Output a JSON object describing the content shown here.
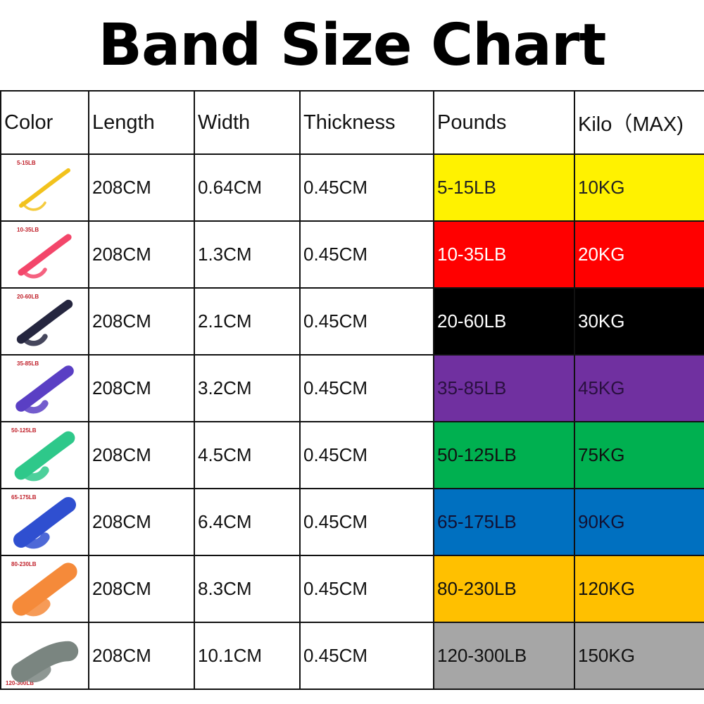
{
  "title": "Band Size Chart",
  "headers": [
    "Color",
    "Length",
    "Width",
    "Thickness",
    "Pounds",
    "Kilo（MAX)"
  ],
  "rows": [
    {
      "label": "5-15LB",
      "length": "208CM",
      "width": "0.64CM",
      "thickness": "0.45CM",
      "pounds": "5-15LB",
      "kilo": "10KG",
      "band_color": "#f2c21c",
      "cell_color": "#fff200",
      "text_color": "#222222"
    },
    {
      "label": "10-35LB",
      "length": "208CM",
      "width": "1.3CM",
      "thickness": "0.45CM",
      "pounds": "10-35LB",
      "kilo": "20KG",
      "band_color": "#f3466a",
      "cell_color": "#ff0000",
      "text_color": "#ffffff"
    },
    {
      "label": "20-60LB",
      "length": "208CM",
      "width": "2.1CM",
      "thickness": "0.45CM",
      "pounds": "20-60LB",
      "kilo": "30KG",
      "band_color": "#25263f",
      "cell_color": "#000000",
      "text_color": "#ffffff"
    },
    {
      "label": "35-85LB",
      "length": "208CM",
      "width": "3.2CM",
      "thickness": "0.45CM",
      "pounds": "35-85LB",
      "kilo": "45KG",
      "band_color": "#5a3fc4",
      "cell_color": "#7030a0",
      "text_color": "#2a1040"
    },
    {
      "label": "50-125LB",
      "length": "208CM",
      "width": "4.5CM",
      "thickness": "0.45CM",
      "pounds": "50-125LB",
      "kilo": "75KG",
      "band_color": "#2ec88a",
      "cell_color": "#00b050",
      "text_color": "#111111"
    },
    {
      "label": "65-175LB",
      "length": "208CM",
      "width": "6.4CM",
      "thickness": "0.45CM",
      "pounds": "65-175LB",
      "kilo": "90KG",
      "band_color": "#2f4fd0",
      "cell_color": "#0070c0",
      "text_color": "#111133"
    },
    {
      "label": "80-230LB",
      "length": "208CM",
      "width": "8.3CM",
      "thickness": "0.45CM",
      "pounds": "80-230LB",
      "kilo": "120KG",
      "band_color": "#f58a3a",
      "cell_color": "#ffc000",
      "text_color": "#111111"
    },
    {
      "label": "120-300LB",
      "length": "208CM",
      "width": "10.1CM",
      "thickness": "0.45CM",
      "pounds": "120-300LB",
      "kilo": "150KG",
      "band_color": "#7a8580",
      "cell_color": "#a6a6a6",
      "text_color": "#111111"
    }
  ]
}
